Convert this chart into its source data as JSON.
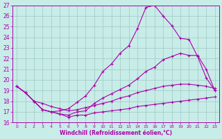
{
  "xlabel": "Windchill (Refroidissement éolien,°C)",
  "bg_color": "#c8ece8",
  "grid_color": "#9fc8c4",
  "line_color": "#aa00aa",
  "xlim_min": -0.5,
  "xlim_max": 23.5,
  "ylim_min": 16,
  "ylim_max": 27,
  "xticks": [
    0,
    1,
    2,
    3,
    4,
    5,
    6,
    7,
    8,
    9,
    10,
    11,
    12,
    13,
    14,
    15,
    16,
    17,
    18,
    19,
    20,
    21,
    22,
    23
  ],
  "yticks": [
    16,
    17,
    18,
    19,
    20,
    21,
    22,
    23,
    24,
    25,
    26,
    27
  ],
  "curve1_x": [
    0,
    1,
    2,
    3,
    4,
    5,
    6,
    7,
    8,
    9,
    10,
    11,
    12,
    13,
    14,
    15,
    16,
    17,
    18,
    19,
    20,
    21,
    22,
    23
  ],
  "curve1_y": [
    19.4,
    18.8,
    18.0,
    17.2,
    17.0,
    17.1,
    17.3,
    17.9,
    18.5,
    19.5,
    20.8,
    21.5,
    22.5,
    23.2,
    24.8,
    26.8,
    27.0,
    26.0,
    25.1,
    23.9,
    23.8,
    22.2,
    20.2,
    19.0
  ],
  "curve2_x": [
    0,
    1,
    2,
    3,
    4,
    5,
    6,
    7,
    8,
    9,
    10,
    11,
    12,
    13,
    14,
    15,
    16,
    17,
    18,
    19,
    20,
    21,
    22,
    23
  ],
  "curve2_y": [
    19.4,
    18.8,
    18.0,
    17.2,
    17.0,
    16.8,
    16.7,
    17.0,
    17.1,
    17.8,
    18.3,
    18.7,
    19.1,
    19.5,
    20.1,
    20.8,
    21.2,
    21.9,
    22.2,
    22.5,
    22.3,
    22.3,
    21.0,
    19.0
  ],
  "curve3_x": [
    0,
    1,
    2,
    3,
    4,
    5,
    6,
    7,
    8,
    9,
    10,
    11,
    12,
    13,
    14,
    15,
    16,
    17,
    18,
    19,
    20,
    21,
    22,
    23
  ],
  "curve3_y": [
    19.4,
    18.8,
    18.0,
    17.8,
    17.5,
    17.3,
    17.1,
    17.2,
    17.4,
    17.6,
    17.8,
    18.0,
    18.3,
    18.5,
    18.8,
    19.0,
    19.2,
    19.4,
    19.5,
    19.6,
    19.6,
    19.5,
    19.4,
    19.2
  ],
  "curve4_x": [
    0,
    1,
    2,
    3,
    4,
    5,
    6,
    7,
    8,
    9,
    10,
    11,
    12,
    13,
    14,
    15,
    16,
    17,
    18,
    19,
    20,
    21,
    22,
    23
  ],
  "curve4_y": [
    19.4,
    18.8,
    18.0,
    17.2,
    17.0,
    16.8,
    16.5,
    16.7,
    16.7,
    16.9,
    17.0,
    17.1,
    17.2,
    17.3,
    17.5,
    17.6,
    17.7,
    17.8,
    17.9,
    18.0,
    18.1,
    18.2,
    18.3,
    18.4
  ]
}
